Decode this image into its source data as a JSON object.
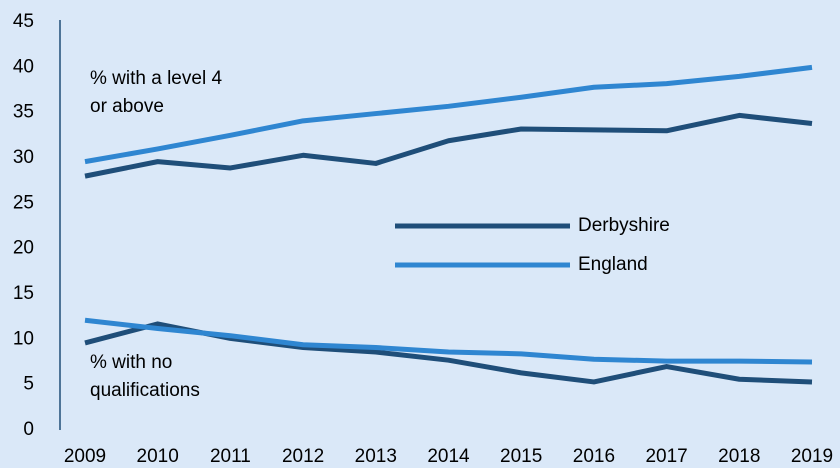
{
  "chart_data": {
    "type": "line",
    "categories": [
      "2009",
      "2010",
      "2011",
      "2012",
      "2013",
      "2014",
      "2015",
      "2016",
      "2017",
      "2018",
      "2019"
    ],
    "series": [
      {
        "name": "Derbyshire",
        "color": "#1f4e79",
        "level4": [
          28.0,
          29.6,
          28.9,
          30.3,
          29.4,
          31.9,
          33.2,
          33.1,
          33.0,
          34.7,
          33.8
        ],
        "no_qualifications": [
          9.6,
          11.7,
          10.1,
          9.1,
          8.6,
          7.7,
          6.3,
          5.3,
          7.0,
          5.6,
          5.3
        ]
      },
      {
        "name": "England",
        "color": "#2f86d1",
        "level4": [
          29.6,
          31.0,
          32.5,
          34.1,
          34.9,
          35.7,
          36.7,
          37.8,
          38.2,
          39.0,
          40.0
        ],
        "no_qualifications": [
          12.1,
          11.2,
          10.4,
          9.4,
          9.1,
          8.6,
          8.4,
          7.8,
          7.6,
          7.6,
          7.5
        ]
      }
    ],
    "annotations": [
      {
        "lines": [
          "% with a level 4",
          "or above"
        ]
      },
      {
        "lines": [
          "% with no",
          "qualifications"
        ]
      }
    ],
    "ylim": [
      0,
      45
    ],
    "yticks": [
      0,
      5,
      10,
      15,
      20,
      25,
      30,
      35,
      40,
      45
    ]
  }
}
